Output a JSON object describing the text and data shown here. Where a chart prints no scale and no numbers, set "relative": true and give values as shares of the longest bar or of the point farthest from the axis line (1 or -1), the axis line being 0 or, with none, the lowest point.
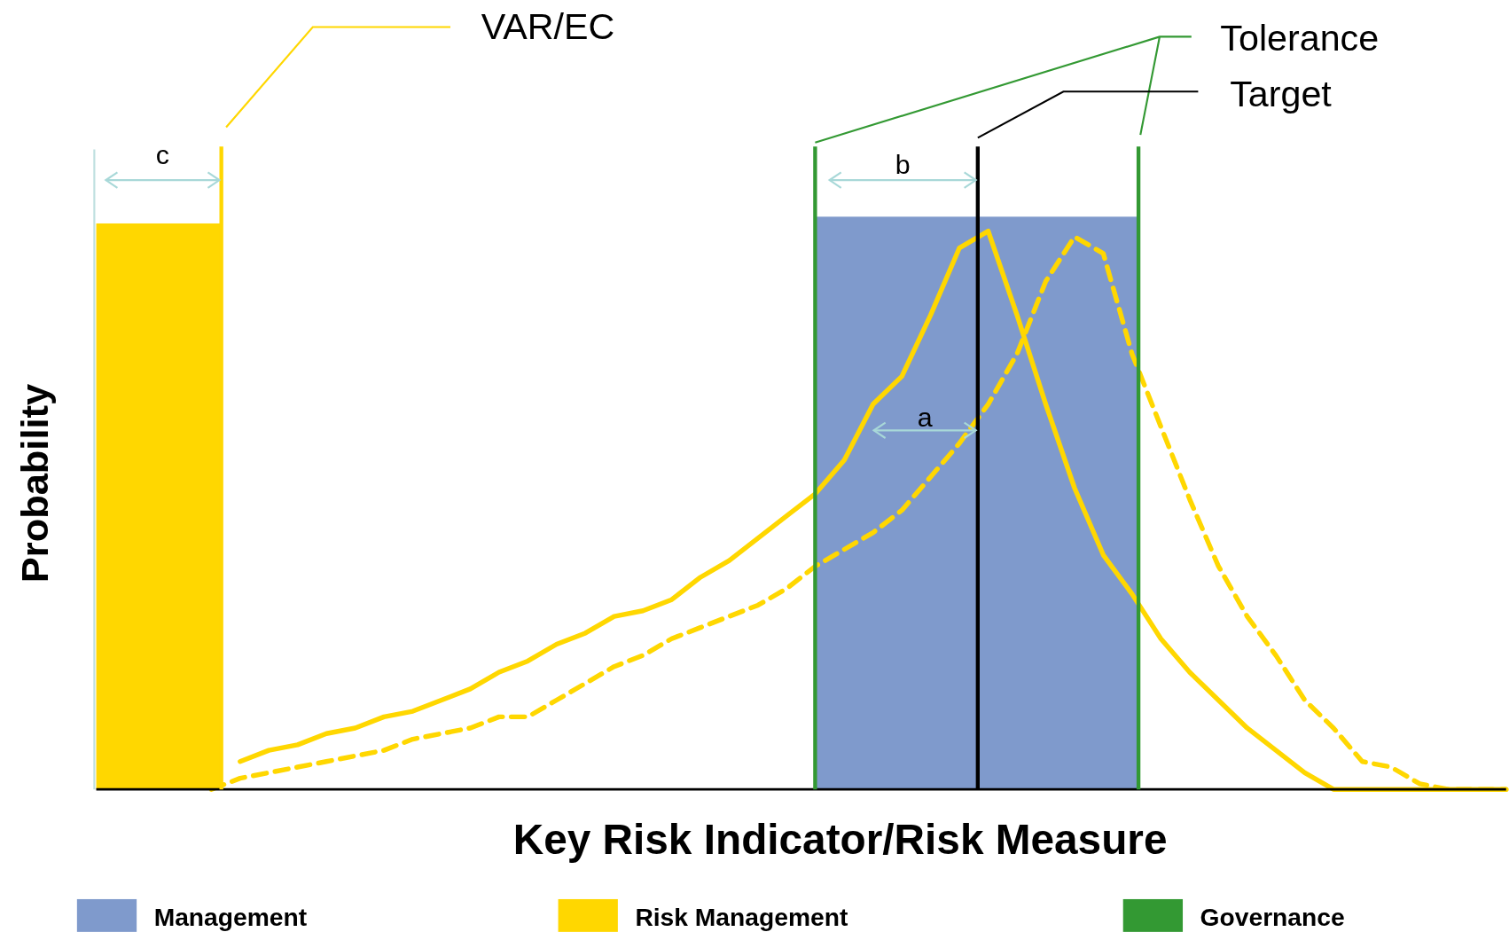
{
  "chart_data": {
    "type": "line",
    "relative": true,
    "xlabel": "Key Risk Indicator/Risk Measure",
    "ylabel": "Probability",
    "categories": [
      null,
      null,
      null,
      null,
      null,
      null,
      null,
      null,
      null,
      null,
      null,
      null,
      null,
      null,
      null,
      null,
      null,
      null,
      null,
      null,
      null,
      null,
      null,
      null,
      null,
      null,
      null,
      null,
      null,
      null,
      null,
      null,
      null,
      null,
      null,
      null,
      null,
      null,
      null,
      null,
      null,
      null,
      null,
      null,
      null,
      null,
      null,
      null,
      null,
      null
    ],
    "series": [
      {
        "color": "#ffd700",
        "line_style": "solid",
        "values": [
          null,
          null,
          null,
          null,
          null,
          0.05,
          0.07,
          0.08,
          0.1,
          0.11,
          0.13,
          0.14,
          0.16,
          0.18,
          0.21,
          0.23,
          0.26,
          0.28,
          0.31,
          0.32,
          0.34,
          0.38,
          0.41,
          0.45,
          0.49,
          0.53,
          0.59,
          0.69,
          0.74,
          0.85,
          0.97,
          1,
          0.85,
          0.69,
          0.54,
          0.42,
          0.35,
          0.27,
          0.21,
          0.16,
          0.11,
          0.07,
          0.03,
          0,
          0,
          0,
          0,
          0,
          0,
          0
        ]
      },
      {
        "color": "#ffd700",
        "line_style": "dashed",
        "values": [
          null,
          null,
          null,
          null,
          0,
          0.02,
          0.03,
          0.04,
          0.05,
          0.06,
          0.07,
          0.09,
          0.1,
          0.11,
          0.13,
          0.13,
          0.16,
          0.19,
          0.22,
          0.24,
          0.27,
          0.29,
          0.31,
          0.33,
          0.36,
          0.4,
          0.43,
          0.46,
          0.5,
          0.56,
          0.62,
          0.69,
          0.78,
          0.91,
          0.99,
          0.96,
          0.78,
          0.65,
          0.52,
          0.4,
          0.31,
          0.24,
          0.16,
          0.11,
          0.05,
          0.04,
          0.01,
          0,
          0,
          0
        ]
      }
    ],
    "annotations": [
      "VAR/EC",
      "Tolerance",
      "Target",
      "a",
      "b",
      "c",
      "Management",
      "Risk Management",
      "Governance"
    ]
  }
}
